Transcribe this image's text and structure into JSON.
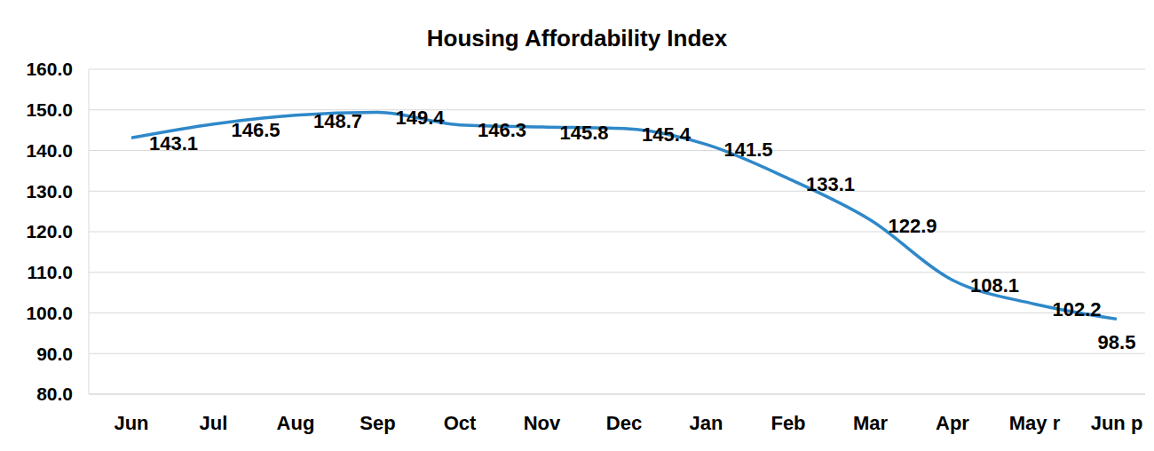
{
  "chart_data": {
    "type": "line",
    "title": "Housing Affordability Index",
    "categories": [
      "Jun",
      "Jul",
      "Aug",
      "Sep",
      "Oct",
      "Nov",
      "Dec",
      "Jan",
      "Feb",
      "Mar",
      "Apr",
      "May r",
      "Jun p"
    ],
    "values": [
      143.1,
      146.5,
      148.7,
      149.4,
      146.3,
      145.8,
      145.4,
      141.5,
      133.1,
      122.9,
      108.1,
      102.2,
      98.5
    ],
    "color": "#2f88c9",
    "ylim": [
      80,
      160
    ],
    "yticks": [
      {
        "value": 80,
        "label": "80.0"
      },
      {
        "value": 90,
        "label": "90.0"
      },
      {
        "value": 100,
        "label": "100.0"
      },
      {
        "value": 110,
        "label": "110.0"
      },
      {
        "value": 120,
        "label": "120.0"
      },
      {
        "value": 130,
        "label": "130.0"
      },
      {
        "value": 140,
        "label": "140.0"
      },
      {
        "value": 150,
        "label": "150.0"
      },
      {
        "value": 160,
        "label": "160.0"
      }
    ],
    "grid": true,
    "data_labels": true
  }
}
